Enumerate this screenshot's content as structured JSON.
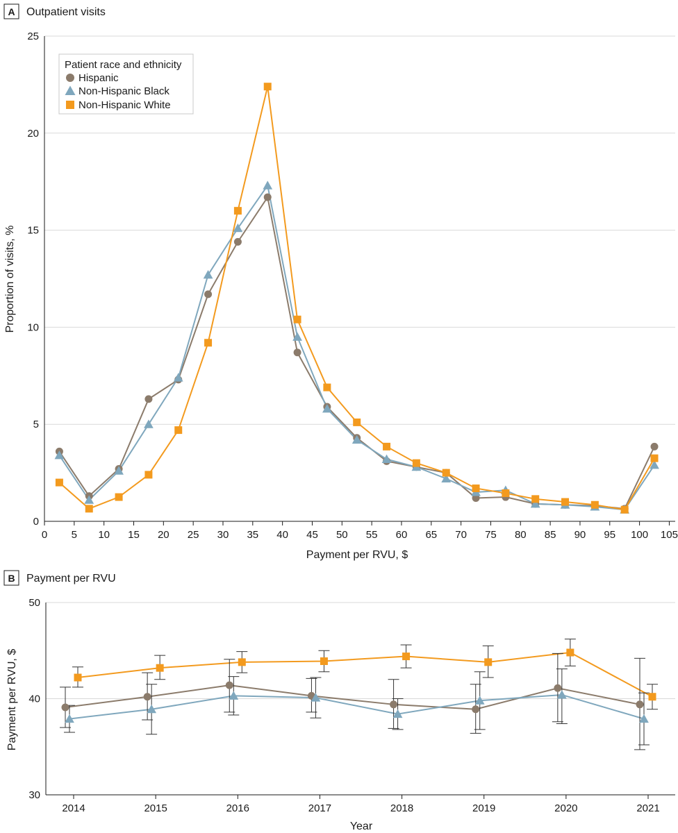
{
  "colors": {
    "hispanic": "#8b7b6b",
    "black": "#7fa7bd",
    "white": "#f39a1e"
  },
  "chart_data": [
    {
      "panel": "A",
      "title": "Outpatient visits",
      "type": "line",
      "xlabel": "Payment per RVU, $",
      "ylabel": "Proportion of visits, %",
      "xlim": [
        0,
        106
      ],
      "ylim": [
        0,
        25
      ],
      "xticks": [
        0,
        5,
        10,
        15,
        20,
        25,
        30,
        35,
        40,
        45,
        50,
        55,
        60,
        65,
        70,
        75,
        80,
        85,
        90,
        95,
        100,
        105
      ],
      "yticks": [
        0,
        5,
        10,
        15,
        20,
        25
      ],
      "grid": "horizontal",
      "legend": {
        "title": "Patient race and ethnicity",
        "placement": "top-left"
      },
      "x": [
        2.5,
        7.5,
        12.5,
        17.5,
        22.5,
        27.5,
        32.5,
        37.5,
        42.5,
        47.5,
        52.5,
        57.5,
        62.5,
        67.5,
        72.5,
        77.5,
        82.5,
        87.5,
        92.5,
        97.5,
        102.5
      ],
      "series": [
        {
          "name": "Hispanic",
          "color": "#8b7b6b",
          "marker": "circle",
          "values": [
            3.6,
            1.3,
            2.7,
            6.3,
            7.3,
            11.7,
            14.4,
            16.7,
            8.7,
            5.9,
            4.3,
            3.1,
            2.8,
            2.5,
            1.2,
            1.25,
            0.9,
            0.85,
            0.8,
            0.65,
            3.85
          ]
        },
        {
          "name": "Non-Hispanic Black",
          "color": "#7fa7bd",
          "marker": "triangle",
          "values": [
            3.4,
            1.1,
            2.6,
            5.0,
            7.4,
            12.7,
            15.1,
            17.3,
            9.5,
            5.8,
            4.2,
            3.2,
            2.8,
            2.2,
            1.5,
            1.6,
            0.9,
            0.85,
            0.75,
            0.6,
            2.9
          ]
        },
        {
          "name": "Non-Hispanic White",
          "color": "#f39a1e",
          "marker": "square",
          "values": [
            2.0,
            0.65,
            1.25,
            2.4,
            4.7,
            9.2,
            16.0,
            22.4,
            10.4,
            6.9,
            5.1,
            3.85,
            3.0,
            2.5,
            1.7,
            1.45,
            1.15,
            1.0,
            0.85,
            0.6,
            3.25
          ]
        }
      ]
    },
    {
      "panel": "B",
      "title": "Payment per RVU",
      "type": "line",
      "xlabel": "Year",
      "ylabel": "Payment per RVU, $",
      "ylim": [
        30,
        50
      ],
      "yticks": [
        30,
        40,
        50
      ],
      "grid": "horizontal",
      "categories": [
        "2014",
        "2015",
        "2016",
        "2017",
        "2018",
        "2019",
        "2020",
        "2021"
      ],
      "series": [
        {
          "name": "Hispanic",
          "color": "#8b7b6b",
          "marker": "circle",
          "values": [
            39.1,
            40.2,
            41.4,
            40.3,
            39.4,
            38.9,
            41.1,
            39.4
          ],
          "lower": [
            37.0,
            37.8,
            38.6,
            38.6,
            36.9,
            36.4,
            37.6,
            34.7
          ],
          "upper": [
            41.2,
            42.7,
            44.1,
            42.1,
            42.0,
            41.5,
            44.7,
            44.2
          ]
        },
        {
          "name": "Non-Hispanic Black",
          "color": "#7fa7bd",
          "marker": "triangle",
          "values": [
            37.9,
            38.9,
            40.3,
            40.1,
            38.4,
            39.8,
            40.4,
            37.9
          ],
          "lower": [
            36.5,
            36.3,
            38.3,
            38.0,
            36.8,
            36.8,
            37.4,
            35.2
          ],
          "upper": [
            39.3,
            41.5,
            42.3,
            42.2,
            40.0,
            42.8,
            43.1,
            40.6
          ]
        },
        {
          "name": "Non-Hispanic White",
          "color": "#f39a1e",
          "marker": "square",
          "values": [
            42.2,
            43.2,
            43.8,
            43.9,
            44.4,
            43.8,
            44.8,
            40.2
          ],
          "lower": [
            41.2,
            42.0,
            42.7,
            42.8,
            43.2,
            42.2,
            43.4,
            38.9
          ],
          "upper": [
            43.3,
            44.5,
            44.9,
            45.0,
            45.6,
            45.5,
            46.2,
            41.5
          ]
        }
      ]
    }
  ]
}
